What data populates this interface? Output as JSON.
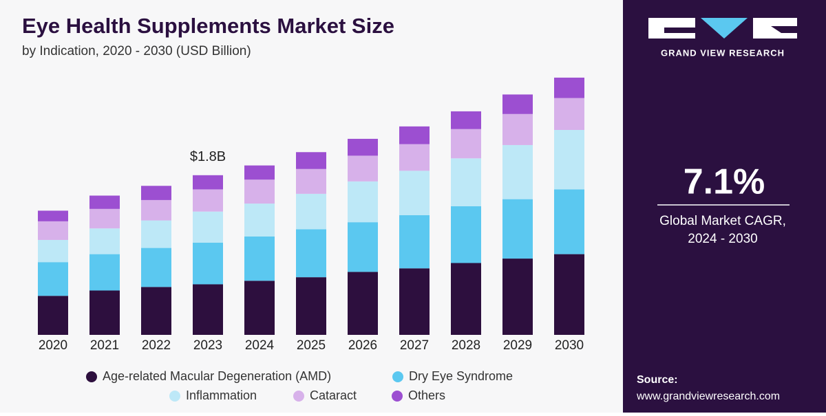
{
  "chart_data": {
    "type": "stacked-bar",
    "title": "Eye Health Supplements Market Size",
    "subtitle": "by Indication, 2020 - 2030 (USD Billion)",
    "categories": [
      "2020",
      "2021",
      "2022",
      "2023",
      "2024",
      "2025",
      "2026",
      "2027",
      "2028",
      "2029",
      "2030"
    ],
    "series": [
      {
        "name": "Age-related Macular Degeneration (AMD)",
        "color": "#2d0f3e",
        "values": [
          0.44,
          0.5,
          0.54,
          0.57,
          0.61,
          0.65,
          0.71,
          0.75,
          0.81,
          0.86,
          0.91
        ]
      },
      {
        "name": "Dry Eye Syndrome",
        "color": "#5bc8f0",
        "values": [
          0.38,
          0.41,
          0.44,
          0.47,
          0.5,
          0.54,
          0.56,
          0.6,
          0.64,
          0.67,
          0.73
        ]
      },
      {
        "name": "Inflammation",
        "color": "#bde8f7",
        "values": [
          0.25,
          0.29,
          0.31,
          0.35,
          0.37,
          0.4,
          0.46,
          0.5,
          0.54,
          0.61,
          0.67
        ]
      },
      {
        "name": "Cataract",
        "color": "#d7b1ea",
        "values": [
          0.21,
          0.22,
          0.23,
          0.25,
          0.27,
          0.28,
          0.29,
          0.3,
          0.33,
          0.35,
          0.36
        ]
      },
      {
        "name": "Others",
        "color": "#9c4fd1",
        "values": [
          0.12,
          0.15,
          0.16,
          0.16,
          0.16,
          0.19,
          0.19,
          0.2,
          0.2,
          0.22,
          0.23
        ]
      }
    ],
    "annotation": {
      "category": "2023",
      "value": 1.8,
      "label": "$1.8B"
    }
  },
  "sidebar": {
    "brand": "GRAND VIEW RESEARCH",
    "cagr": "7.1%",
    "cagr_caption": [
      "Global Market CAGR,",
      "2024 - 2030"
    ],
    "source_label": "Source:",
    "source_url": "www.grandviewresearch.com"
  }
}
